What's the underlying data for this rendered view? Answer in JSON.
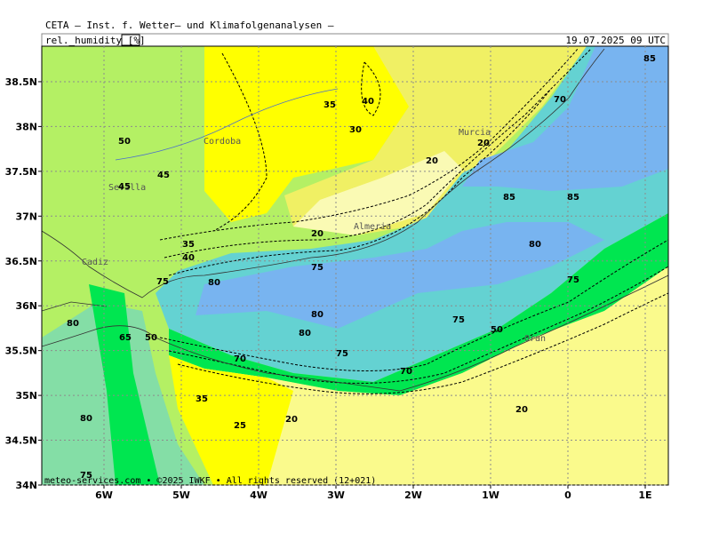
{
  "header": {
    "title": "CETA – Inst. f. Wetter– und Klimafolgenanalysen –",
    "parameter": "rel._humidity [%]",
    "valid_time": "19.07.2025 09 UTC"
  },
  "map": {
    "lon_ticks": [
      {
        "value": -6,
        "label": "6W"
      },
      {
        "value": -5,
        "label": "5W"
      },
      {
        "value": -4,
        "label": "4W"
      },
      {
        "value": -3,
        "label": "3W"
      },
      {
        "value": -2,
        "label": "2W"
      },
      {
        "value": -1,
        "label": "1W"
      },
      {
        "value": 0,
        "label": "0"
      },
      {
        "value": 1,
        "label": "1E"
      }
    ],
    "lat_ticks": [
      {
        "value": 38.5,
        "label": "38.5N"
      },
      {
        "value": 38,
        "label": "38N"
      },
      {
        "value": 37.5,
        "label": "37.5N"
      },
      {
        "value": 37,
        "label": "37N"
      },
      {
        "value": 36.5,
        "label": "36.5N"
      },
      {
        "value": 36,
        "label": "36N"
      },
      {
        "value": 35.5,
        "label": "35.5N"
      },
      {
        "value": 35,
        "label": "35N"
      },
      {
        "value": 34.5,
        "label": "34.5N"
      },
      {
        "value": 34,
        "label": "34N"
      }
    ],
    "cities": [
      "Cordoba",
      "Sevilla",
      "Cadiz",
      "Murcia",
      "Almeria",
      "Oran"
    ],
    "contour_labels": [
      35,
      40,
      30,
      50,
      45,
      45,
      20,
      20,
      70,
      85,
      85,
      85,
      80,
      20,
      75,
      35,
      40,
      75,
      80,
      80,
      80,
      80,
      65,
      50,
      70,
      75,
      70,
      75,
      50,
      75,
      35,
      20,
      25,
      20,
      80,
      75
    ],
    "copyright": "meteo-services.com • ©2025 IWKF • All rights reserved (12+021)"
  }
}
